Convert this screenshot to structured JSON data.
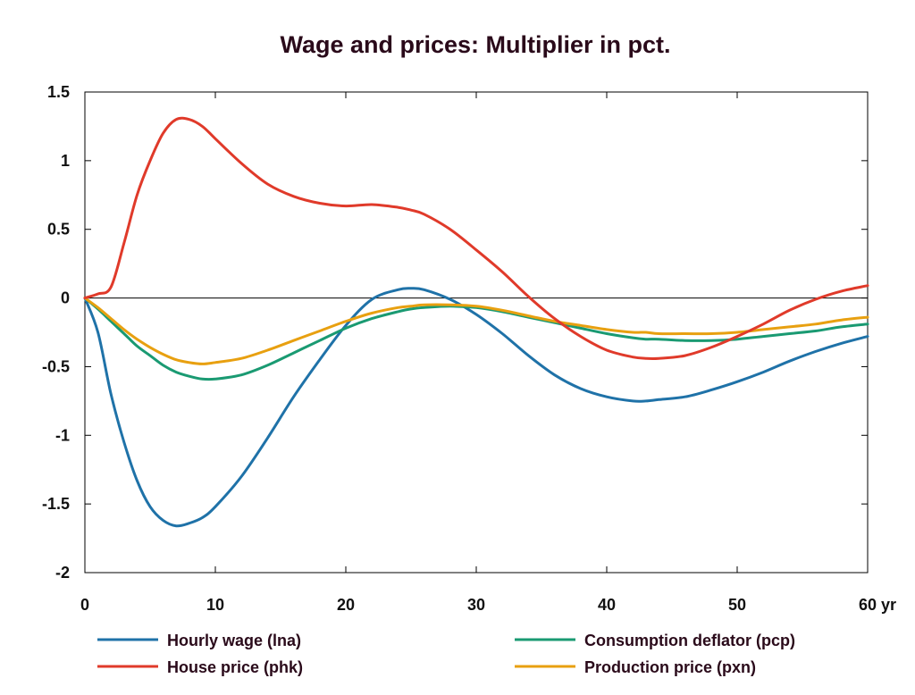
{
  "chart_data": {
    "type": "line",
    "title": "Wage and prices: Multiplier in pct.",
    "xlabel": "",
    "ylabel": "",
    "x_unit": "yr",
    "xlim": [
      0,
      60
    ],
    "ylim": [
      -2,
      1.5
    ],
    "x_ticks": [
      0,
      10,
      20,
      30,
      40,
      50,
      60
    ],
    "x_tick_labels": [
      "0",
      "10",
      "20",
      "30",
      "40",
      "50",
      "60 yr"
    ],
    "y_ticks": [
      -2,
      -1.5,
      -1,
      -0.5,
      0,
      0.5,
      1,
      1.5
    ],
    "y_tick_labels": [
      "-2",
      "-1.5",
      "-1",
      "-0.5",
      "0",
      "0.5",
      "1",
      "1.5"
    ],
    "grid": false,
    "legend_position": "bottom",
    "x": [
      0,
      1,
      2,
      3,
      4,
      5,
      6,
      7,
      8,
      9,
      10,
      12,
      14,
      16,
      18,
      20,
      22,
      24,
      25,
      26,
      28,
      30,
      32,
      34,
      36,
      38,
      40,
      42,
      43,
      44,
      46,
      48,
      50,
      52,
      54,
      56,
      58,
      60
    ],
    "series": [
      {
        "name": "Hourly wage (lna)",
        "color": "#1f72a8",
        "values": [
          0,
          -0.25,
          -0.7,
          -1.05,
          -1.33,
          -1.52,
          -1.62,
          -1.66,
          -1.64,
          -1.6,
          -1.52,
          -1.3,
          -1.02,
          -0.72,
          -0.45,
          -0.2,
          -0.01,
          0.06,
          0.07,
          0.06,
          -0.01,
          -0.12,
          -0.26,
          -0.42,
          -0.56,
          -0.66,
          -0.72,
          -0.75,
          -0.75,
          -0.74,
          -0.72,
          -0.67,
          -0.61,
          -0.54,
          -0.46,
          -0.39,
          -0.33,
          -0.28
        ]
      },
      {
        "name": "House price (phk)",
        "color": "#e03a2a",
        "values": [
          0,
          0.03,
          0.08,
          0.4,
          0.75,
          1.0,
          1.2,
          1.3,
          1.3,
          1.25,
          1.16,
          0.98,
          0.83,
          0.74,
          0.69,
          0.67,
          0.68,
          0.66,
          0.64,
          0.61,
          0.5,
          0.35,
          0.19,
          0.01,
          -0.15,
          -0.28,
          -0.38,
          -0.43,
          -0.44,
          -0.44,
          -0.42,
          -0.36,
          -0.28,
          -0.19,
          -0.09,
          -0.01,
          0.05,
          0.09
        ]
      },
      {
        "name": "Consumption deflator (pcp)",
        "color": "#1a9a72",
        "values": [
          0,
          -0.08,
          -0.17,
          -0.26,
          -0.35,
          -0.42,
          -0.49,
          -0.54,
          -0.57,
          -0.59,
          -0.59,
          -0.56,
          -0.49,
          -0.4,
          -0.31,
          -0.22,
          -0.15,
          -0.1,
          -0.08,
          -0.07,
          -0.06,
          -0.07,
          -0.1,
          -0.14,
          -0.18,
          -0.22,
          -0.26,
          -0.29,
          -0.3,
          -0.3,
          -0.31,
          -0.31,
          -0.3,
          -0.28,
          -0.26,
          -0.24,
          -0.21,
          -0.19
        ]
      },
      {
        "name": "Production price (pxn)",
        "color": "#e8a010",
        "values": [
          0,
          -0.07,
          -0.15,
          -0.23,
          -0.3,
          -0.36,
          -0.41,
          -0.45,
          -0.47,
          -0.48,
          -0.47,
          -0.44,
          -0.38,
          -0.31,
          -0.24,
          -0.17,
          -0.11,
          -0.07,
          -0.06,
          -0.05,
          -0.05,
          -0.06,
          -0.09,
          -0.13,
          -0.17,
          -0.2,
          -0.23,
          -0.25,
          -0.25,
          -0.26,
          -0.26,
          -0.26,
          -0.25,
          -0.23,
          -0.21,
          -0.19,
          -0.16,
          -0.14
        ]
      }
    ]
  }
}
